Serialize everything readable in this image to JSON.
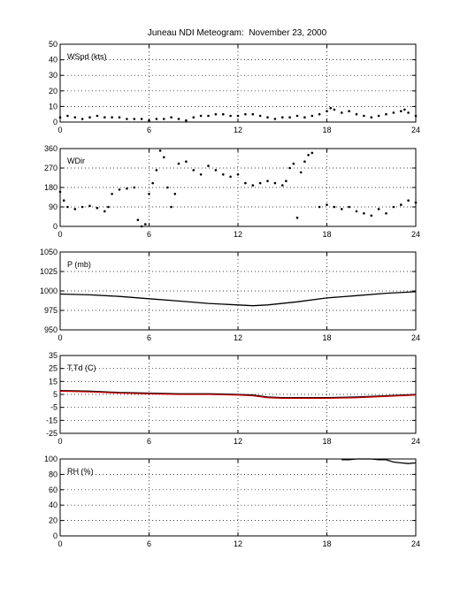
{
  "figure": {
    "title": "Juneau NDI Meteogram:  November 23, 2000"
  },
  "chart_data": [
    {
      "type": "scatter",
      "label": "WSpd (kts)",
      "xlim": [
        0,
        24
      ],
      "ylim": [
        0,
        50
      ],
      "x_ticks": [
        0,
        6,
        12,
        18,
        24
      ],
      "y_ticks": [
        0,
        10,
        20,
        30,
        40,
        50
      ],
      "grid": true,
      "series": [
        {
          "color": "#000000",
          "x": [
            0,
            0.5,
            1,
            1.5,
            2,
            2.5,
            3,
            3.5,
            4,
            4.5,
            5,
            5.5,
            6,
            6.5,
            7,
            7.5,
            8,
            8.5,
            9,
            9.5,
            10,
            10.5,
            11,
            11.5,
            12,
            12.5,
            13,
            13.5,
            14,
            14.5,
            15,
            15.5,
            16,
            16.5,
            17,
            17.5,
            18,
            18.25,
            18.5,
            19,
            19.5,
            20,
            20.5,
            21,
            21.5,
            22,
            22.5,
            23,
            23.25,
            23.5,
            24
          ],
          "y": [
            3,
            4,
            3,
            2,
            3,
            4,
            3,
            3,
            3,
            2,
            2,
            2,
            1,
            2,
            2,
            3,
            2,
            1,
            3,
            4,
            4,
            5,
            5,
            4,
            4,
            5,
            5,
            4,
            3,
            2,
            3,
            3,
            4,
            3,
            4,
            5,
            7,
            9,
            8,
            6,
            7,
            5,
            4,
            3,
            4,
            5,
            6,
            7,
            8,
            6,
            4
          ]
        }
      ]
    },
    {
      "type": "scatter",
      "label": "WDir",
      "xlim": [
        0,
        24
      ],
      "ylim": [
        0,
        360
      ],
      "x_ticks": [
        0,
        6,
        12,
        18,
        24
      ],
      "y_ticks": [
        0,
        90,
        180,
        270,
        360
      ],
      "grid": true,
      "series": [
        {
          "color": "#000000",
          "x": [
            0,
            0.25,
            0.5,
            1,
            1.5,
            2,
            2.5,
            3,
            3.25,
            3.5,
            4,
            4.5,
            5,
            5.25,
            5.5,
            5.75,
            6,
            6.25,
            6.5,
            6.75,
            7,
            7.25,
            7.5,
            7.75,
            8,
            8.5,
            9,
            9.5,
            10,
            10.5,
            11,
            11.5,
            12,
            12.5,
            13,
            13.5,
            14,
            14.5,
            15,
            15.25,
            15.5,
            15.75,
            16,
            16.25,
            16.5,
            16.75,
            17,
            17.5,
            18,
            18.5,
            19,
            19.5,
            20,
            20.5,
            21,
            21.5,
            22,
            22.5,
            23,
            23.5,
            24
          ],
          "y": [
            160,
            120,
            90,
            80,
            90,
            95,
            85,
            70,
            90,
            150,
            170,
            175,
            180,
            30,
            0,
            10,
            150,
            200,
            260,
            350,
            320,
            180,
            90,
            150,
            290,
            300,
            260,
            240,
            280,
            260,
            240,
            230,
            240,
            200,
            190,
            200,
            210,
            200,
            190,
            210,
            270,
            290,
            40,
            250,
            300,
            330,
            340,
            90,
            100,
            90,
            80,
            90,
            70,
            60,
            50,
            80,
            60,
            90,
            100,
            120,
            110
          ]
        }
      ]
    },
    {
      "type": "line",
      "label": "P (mb)",
      "xlim": [
        0,
        24
      ],
      "ylim": [
        950,
        1050
      ],
      "x_ticks": [
        0,
        6,
        12,
        18,
        24
      ],
      "y_ticks": [
        950,
        975,
        1000,
        1025,
        1050
      ],
      "grid": true,
      "series": [
        {
          "color": "#000000",
          "x": [
            0,
            2,
            4,
            6,
            8,
            10,
            12,
            13,
            14,
            16,
            18,
            20,
            22,
            24
          ],
          "y": [
            996,
            995,
            993,
            990,
            987,
            984,
            982,
            981,
            982,
            986,
            991,
            994,
            997,
            999
          ]
        }
      ]
    },
    {
      "type": "line",
      "label": "T,Td (C)",
      "xlim": [
        0,
        24
      ],
      "ylim": [
        -25,
        35
      ],
      "x_ticks": [
        0,
        6,
        12,
        18,
        24
      ],
      "y_ticks": [
        -25,
        -15,
        -5,
        5,
        15,
        25,
        35
      ],
      "grid": true,
      "series": [
        {
          "color": "#000000",
          "x": [
            0,
            2,
            4,
            6,
            8,
            10,
            12,
            13,
            14,
            15,
            16,
            18,
            20,
            22,
            24
          ],
          "y": [
            8,
            7.5,
            6.5,
            6,
            5.5,
            5.5,
            5,
            4.5,
            3,
            2.5,
            2.5,
            2.5,
            3,
            4,
            5
          ]
        },
        {
          "color": "#cc0000",
          "x": [
            0,
            2,
            4,
            6,
            8,
            10,
            12,
            13,
            14,
            15,
            16,
            18,
            20,
            22,
            24
          ],
          "y": [
            7.5,
            7,
            6,
            5.5,
            5,
            5,
            4.5,
            4,
            2.5,
            2,
            2,
            2,
            2.5,
            3.5,
            4.5
          ]
        }
      ]
    },
    {
      "type": "line",
      "label": "RH (%)",
      "xlim": [
        0,
        24
      ],
      "ylim": [
        0,
        100
      ],
      "x_ticks": [
        0,
        6,
        12,
        18,
        24
      ],
      "y_ticks": [
        0,
        20,
        40,
        60,
        80,
        100
      ],
      "grid": true,
      "series": [
        {
          "color": "#000000",
          "x": [
            19,
            19.5,
            20,
            20.5,
            21,
            21.5,
            22,
            22.5,
            23,
            23.5,
            24
          ],
          "y": [
            99,
            99,
            100,
            100,
            100,
            99,
            99,
            96,
            95,
            94,
            95
          ]
        }
      ]
    }
  ]
}
